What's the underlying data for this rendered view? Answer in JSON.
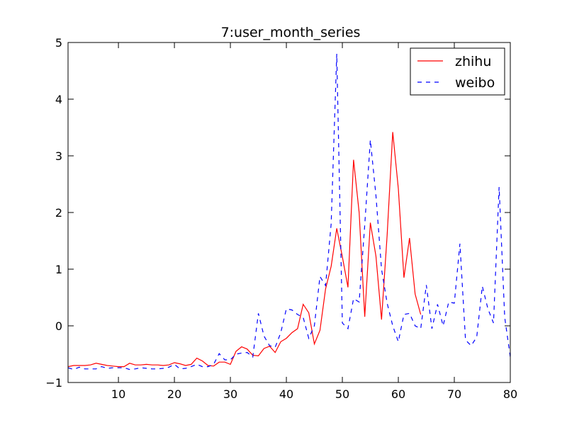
{
  "chart_data": {
    "type": "line",
    "title": "7:user_month_series",
    "xlabel": "",
    "ylabel": "",
    "xlim": [
      1,
      80
    ],
    "ylim": [
      -1,
      5
    ],
    "xticks": [
      10,
      20,
      30,
      40,
      50,
      60,
      70,
      80
    ],
    "yticks": [
      -1,
      0,
      1,
      2,
      3,
      4,
      5
    ],
    "xtick_labels": [
      "10",
      "20",
      "30",
      "40",
      "50",
      "60",
      "70",
      "80"
    ],
    "ytick_labels": [
      "−1",
      "0",
      "1",
      "2",
      "3",
      "4",
      "5"
    ],
    "grid": false,
    "legend_position": "top-right",
    "series": [
      {
        "name": "zhihu",
        "color": "#ff0000",
        "style": "solid",
        "x": [
          1,
          2,
          3,
          4,
          5,
          6,
          7,
          8,
          9,
          10,
          11,
          12,
          13,
          14,
          15,
          16,
          17,
          18,
          19,
          20,
          21,
          22,
          23,
          24,
          25,
          26,
          27,
          28,
          29,
          30,
          31,
          32,
          33,
          34,
          35,
          36,
          37,
          38,
          39,
          40,
          41,
          42,
          43,
          44,
          45,
          46,
          47,
          48,
          49,
          50,
          51,
          52,
          53,
          54,
          55,
          56,
          57,
          58,
          59,
          60,
          61,
          62,
          63,
          64
        ],
        "y": [
          -0.72,
          -0.7,
          -0.7,
          -0.7,
          -0.69,
          -0.66,
          -0.68,
          -0.7,
          -0.71,
          -0.72,
          -0.72,
          -0.66,
          -0.69,
          -0.69,
          -0.68,
          -0.69,
          -0.69,
          -0.7,
          -0.69,
          -0.65,
          -0.67,
          -0.7,
          -0.68,
          -0.57,
          -0.62,
          -0.7,
          -0.71,
          -0.64,
          -0.64,
          -0.68,
          -0.45,
          -0.37,
          -0.41,
          -0.52,
          -0.53,
          -0.4,
          -0.36,
          -0.47,
          -0.28,
          -0.22,
          -0.12,
          -0.05,
          0.38,
          0.23,
          -0.32,
          -0.08,
          0.65,
          1.05,
          1.72,
          1.22,
          0.68,
          2.93,
          2.0,
          0.16,
          1.82,
          1.23,
          0.11,
          1.6,
          3.42,
          2.42,
          0.85,
          1.55,
          0.56,
          0.2
        ]
      },
      {
        "name": "weibo",
        "color": "#0000ff",
        "style": "dashed",
        "x": [
          1,
          2,
          3,
          4,
          5,
          6,
          7,
          8,
          9,
          10,
          11,
          12,
          13,
          14,
          15,
          16,
          17,
          18,
          19,
          20,
          21,
          22,
          23,
          24,
          25,
          26,
          27,
          28,
          29,
          30,
          31,
          32,
          33,
          34,
          35,
          36,
          37,
          38,
          39,
          40,
          41,
          42,
          43,
          44,
          45,
          46,
          47,
          48,
          49,
          50,
          51,
          52,
          53,
          54,
          55,
          56,
          57,
          58,
          59,
          60,
          61,
          62,
          63,
          64,
          65,
          66,
          67,
          68,
          69,
          70,
          71,
          72,
          73,
          74,
          75,
          76,
          77,
          78,
          79,
          80
        ],
        "y": [
          -0.74,
          -0.77,
          -0.73,
          -0.76,
          -0.76,
          -0.76,
          -0.72,
          -0.75,
          -0.74,
          -0.74,
          -0.74,
          -0.77,
          -0.76,
          -0.74,
          -0.75,
          -0.76,
          -0.76,
          -0.75,
          -0.73,
          -0.68,
          -0.76,
          -0.75,
          -0.72,
          -0.68,
          -0.72,
          -0.72,
          -0.68,
          -0.49,
          -0.6,
          -0.6,
          -0.5,
          -0.48,
          -0.47,
          -0.55,
          0.22,
          -0.18,
          -0.35,
          -0.38,
          -0.12,
          0.3,
          0.28,
          0.2,
          0.15,
          -0.22,
          0.0,
          0.87,
          0.71,
          1.8,
          4.8,
          0.05,
          -0.05,
          0.48,
          0.42,
          1.78,
          3.28,
          2.3,
          1.0,
          0.4,
          0.0,
          -0.28,
          0.2,
          0.22,
          0.0,
          -0.05,
          0.72,
          -0.05,
          0.38,
          0.0,
          0.42,
          0.4,
          1.45,
          -0.25,
          -0.35,
          -0.2,
          0.7,
          0.3,
          0.05,
          2.45,
          0.15,
          -0.55
        ]
      }
    ]
  }
}
